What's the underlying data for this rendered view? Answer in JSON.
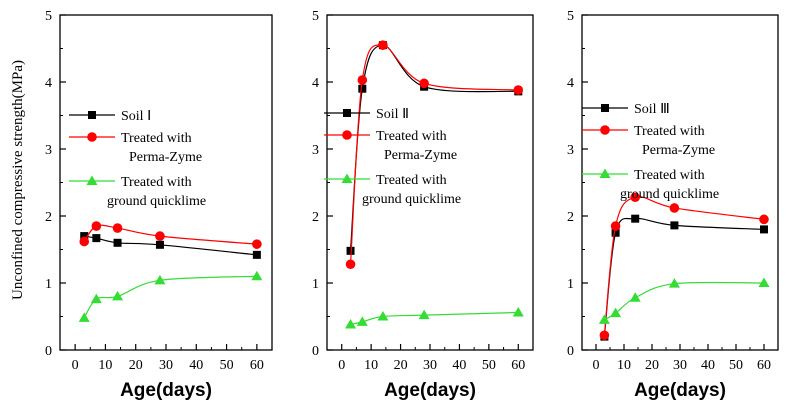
{
  "figure": {
    "ylabel": "Unconfined compressive strength(MPa)"
  },
  "chart_data": [
    {
      "type": "line",
      "xlabel": "Age(days)",
      "xlim": [
        -5,
        65
      ],
      "ylim": [
        0,
        5
      ],
      "xticks": [
        0,
        10,
        20,
        30,
        40,
        50,
        60
      ],
      "yticks": [
        0,
        1,
        2,
        3,
        4,
        5
      ],
      "legend_position": "left-middle",
      "series": [
        {
          "name": "Soil Ⅰ",
          "color": "#000000",
          "marker": "square",
          "x": [
            3,
            7,
            14,
            28,
            60
          ],
          "y": [
            1.7,
            1.67,
            1.6,
            1.57,
            1.42
          ]
        },
        {
          "name": "Treated with Perma-Zyme",
          "color": "#ff0000",
          "marker": "circle",
          "x": [
            3,
            7,
            14,
            28,
            60
          ],
          "y": [
            1.62,
            1.85,
            1.82,
            1.7,
            1.58
          ]
        },
        {
          "name": "Treated with ground quicklime",
          "color": "#33dd33",
          "marker": "triangle",
          "x": [
            3,
            7,
            14,
            28,
            60
          ],
          "y": [
            0.48,
            0.76,
            0.8,
            1.04,
            1.1
          ]
        }
      ]
    },
    {
      "type": "line",
      "xlabel": "Age(days)",
      "xlim": [
        -5,
        65
      ],
      "ylim": [
        0,
        5
      ],
      "xticks": [
        0,
        10,
        20,
        30,
        40,
        50,
        60
      ],
      "yticks": [
        0,
        1,
        2,
        3,
        4,
        5
      ],
      "legend_position": "center-right",
      "series": [
        {
          "name": "Soil Ⅱ",
          "color": "#000000",
          "marker": "square",
          "x": [
            3,
            7,
            14,
            28,
            60
          ],
          "y": [
            1.48,
            3.9,
            4.55,
            3.93,
            3.86
          ]
        },
        {
          "name": "Treated with Perma-Zyme",
          "color": "#ff0000",
          "marker": "circle",
          "x": [
            3,
            7,
            14,
            28,
            60
          ],
          "y": [
            1.28,
            4.03,
            4.55,
            3.98,
            3.88
          ]
        },
        {
          "name": "Treated with ground quicklime",
          "color": "#33dd33",
          "marker": "triangle",
          "x": [
            3,
            7,
            14,
            28,
            60
          ],
          "y": [
            0.38,
            0.42,
            0.5,
            0.52,
            0.56
          ]
        }
      ]
    },
    {
      "type": "line",
      "xlabel": "Age(days)",
      "xlim": [
        -5,
        65
      ],
      "ylim": [
        0,
        5
      ],
      "xticks": [
        0,
        10,
        20,
        30,
        40,
        50,
        60
      ],
      "yticks": [
        0,
        1,
        2,
        3,
        4,
        5
      ],
      "legend_position": "center-right",
      "series": [
        {
          "name": "Soil Ⅲ",
          "color": "#000000",
          "marker": "square",
          "x": [
            3,
            7,
            14,
            28,
            60
          ],
          "y": [
            0.2,
            1.75,
            1.96,
            1.86,
            1.8
          ]
        },
        {
          "name": "Treated with Perma-Zyme",
          "color": "#ff0000",
          "marker": "circle",
          "x": [
            3,
            7,
            14,
            28,
            60
          ],
          "y": [
            0.22,
            1.85,
            2.28,
            2.12,
            1.95
          ]
        },
        {
          "name": "Treated with ground quicklime",
          "color": "#33dd33",
          "marker": "triangle",
          "x": [
            3,
            7,
            14,
            28,
            60
          ],
          "y": [
            0.45,
            0.55,
            0.78,
            0.99,
            1.0
          ]
        }
      ]
    }
  ]
}
